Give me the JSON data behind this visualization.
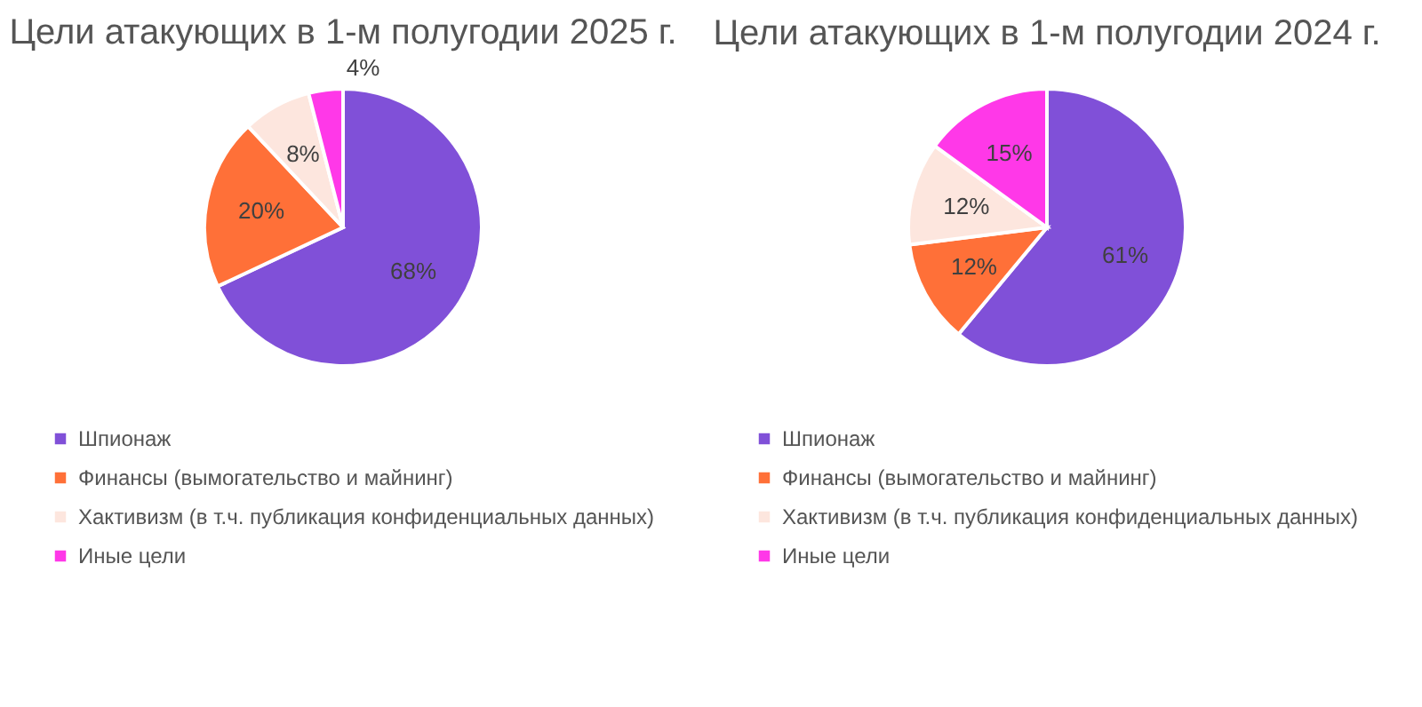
{
  "chart_data": [
    {
      "type": "pie",
      "title": "Цели атакующих в 1-м полугодии 2025 г.",
      "categories": [
        "Шпионаж",
        "Финансы (вымогательство и майнинг)",
        "Хактивизм (в т.ч. публикация конфиденциальных данных)",
        "Иные цели"
      ],
      "values": [
        68,
        20,
        8,
        4
      ],
      "colors": [
        "#8050d8",
        "#ff7038",
        "#fde6de",
        "#ff38e8"
      ],
      "value_labels": [
        "68%",
        "20%",
        "8%",
        "4%"
      ],
      "legend": "bottom"
    },
    {
      "type": "pie",
      "title": "Цели атакующих в 1-м полугодии 2024 г.",
      "categories": [
        "Шпионаж",
        "Финансы (вымогательство и майнинг)",
        "Хактивизм (в т.ч. публикация конфиденциальных данных)",
        "Иные цели"
      ],
      "values": [
        61,
        12,
        12,
        15
      ],
      "colors": [
        "#8050d8",
        "#ff7038",
        "#fde6de",
        "#ff38e8"
      ],
      "value_labels": [
        "61%",
        "12%",
        "12%",
        "15%"
      ],
      "legend": "bottom"
    }
  ]
}
